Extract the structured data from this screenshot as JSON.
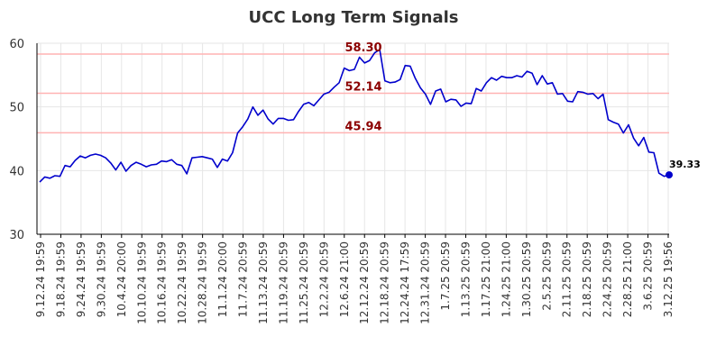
{
  "chart_data": {
    "type": "line",
    "title": "UCC Long Term Signals",
    "xlabel": "",
    "ylabel": "",
    "ylim": [
      30,
      60
    ],
    "yticks": [
      30,
      40,
      50,
      60
    ],
    "grid": true,
    "legend": "none",
    "colors": {
      "line": "#0000cc",
      "reference": "#ffb3b3",
      "reference_label": "#8b0000",
      "grid": "#e6e6e6",
      "axis": "#000000"
    },
    "x_tick_labels": [
      "9.12.24 19:59",
      "9.18.24 19:59",
      "9.24.24 19:59",
      "9.30.24 19:59",
      "10.4.24 20:00",
      "10.10.24 19:59",
      "10.16.24 19:59",
      "10.22.24 19:59",
      "10.28.24 19:59",
      "11.1.24 20:00",
      "11.7.24 20:59",
      "11.13.24 20:59",
      "11.19.24 20:59",
      "11.25.24 20:59",
      "12.2.24 20:59",
      "12.6.24 21:00",
      "12.12.24 20:59",
      "12.18.24 20:59",
      "12.24.24 17:59",
      "12.31.24 20:59",
      "1.7.25 20:59",
      "1.13.25 20:59",
      "1.17.25 21:00",
      "1.24.25 21:00",
      "1.30.25 20:59",
      "2.5.25 20:59",
      "2.11.25 20:59",
      "2.18.25 20:59",
      "2.24.25 20:59",
      "2.28.25 21:00",
      "3.6.25 20:59",
      "3.12.25 19:56"
    ],
    "reference_lines": [
      {
        "value": 58.3,
        "label": "58.30"
      },
      {
        "value": 52.14,
        "label": "52.14"
      },
      {
        "value": 45.94,
        "label": "45.94"
      }
    ],
    "series": [
      {
        "values": [
          38.2,
          39.0,
          38.8,
          39.2,
          39.1,
          40.8,
          40.6,
          41.6,
          42.3,
          42.0,
          42.4,
          42.6,
          42.4,
          42.0,
          41.2,
          40.1,
          41.3,
          39.9,
          40.8,
          41.3,
          41.0,
          40.6,
          40.9,
          41.0,
          41.5,
          41.4,
          41.7,
          41.0,
          40.8,
          39.5,
          42.0,
          42.1,
          42.2,
          42.0,
          41.8,
          40.5,
          41.8,
          41.5,
          42.8,
          45.9,
          46.9,
          48.1,
          50.0,
          48.7,
          49.5,
          48.1,
          47.3,
          48.2,
          48.2,
          47.9,
          48.0,
          49.3,
          50.4,
          50.7,
          50.2,
          51.1,
          52.0,
          52.3,
          53.1,
          53.8,
          56.1,
          55.7,
          55.9,
          57.8,
          56.9,
          57.3,
          58.5,
          59.0,
          54.1,
          53.8,
          53.9,
          54.3,
          56.5,
          56.4,
          54.5,
          53.0,
          52.0,
          50.4,
          52.5,
          52.8,
          50.8,
          51.2,
          51.1,
          50.1,
          50.6,
          50.5,
          52.9,
          52.5,
          53.8,
          54.6,
          54.2,
          54.8,
          54.6,
          54.6,
          54.9,
          54.7,
          55.6,
          55.3,
          53.5,
          54.9,
          53.6,
          53.8,
          52.0,
          52.1,
          50.9,
          50.8,
          52.4,
          52.3,
          52.0,
          52.1,
          51.3,
          52.0,
          48.0,
          47.6,
          47.3,
          45.9,
          47.2,
          45.1,
          43.9,
          45.2,
          42.9,
          42.8,
          39.6,
          39.1,
          39.33
        ]
      }
    ],
    "last_point": {
      "value": 39.33,
      "label": "39.33"
    }
  }
}
